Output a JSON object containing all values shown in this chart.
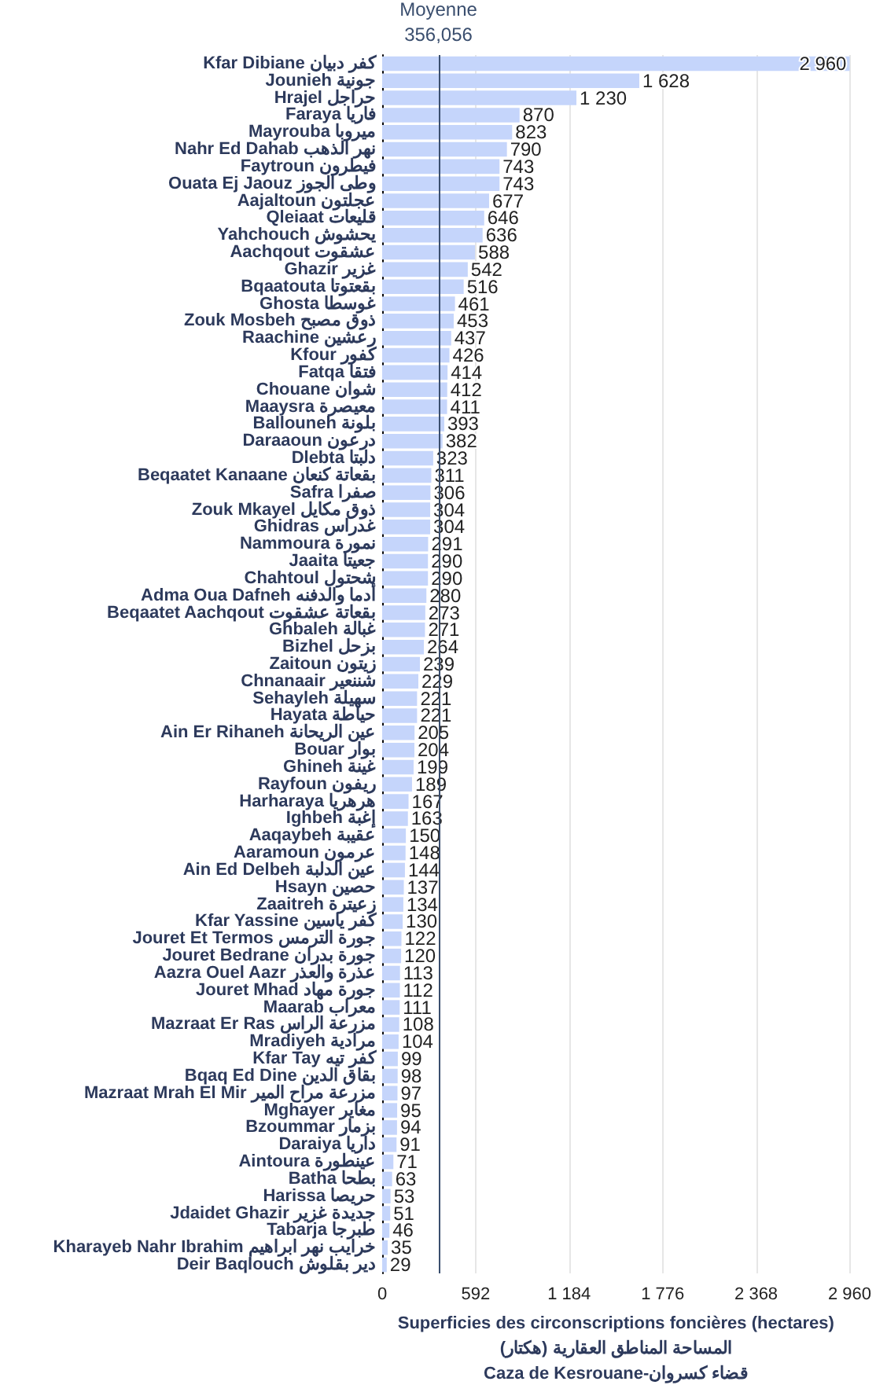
{
  "chart_data": {
    "type": "bar",
    "orientation": "horizontal",
    "color": "#c5d5fb",
    "categories": [
      "Kfar Dibiane كفر دبيان",
      "Jounieh جونية",
      "Hrajel حراجل",
      "Faraya فاريا",
      "Mayrouba ميروبا",
      "Nahr Ed Dahab نهر الذهب",
      "Faytroun فيطرون",
      "Ouata Ej Jaouz وطى الجوز",
      "Aajaltoun عجلتون",
      "Qleiaat قليعات",
      "Yahchouch يحشوش",
      "Aachqout عشقوت",
      "Ghazir غزير",
      "Bqaatouta بقعتوتا",
      "Ghosta غوسطا",
      "Zouk Mosbeh ذوق مصبح",
      "Raachine رعشين",
      "Kfour كفور",
      "Fatqa فتقا",
      "Chouane شوان",
      "Maaysra معيصرة",
      "Ballouneh بلونة",
      "Daraaoun درعون",
      "Dlebta دلبتا",
      "Beqaatet Kanaane بقعاتة كنعان",
      "Safra صفرا",
      "Zouk Mkayel ذوق مكايل",
      "Ghidras غدراس",
      "Nammoura نمورة",
      "Jaaita جعيتا",
      "Chahtoul شحتول",
      "Adma Oua Dafneh أدما والدفنه",
      "Beqaatet Aachqout بقعاتة عشقوت",
      "Ghbaleh غبالة",
      "Bizhel بزحل",
      "Zaitoun زيتون",
      "Chnanaair شننعير",
      "Sehayleh سهيلة",
      "Hayata حياطة",
      "Ain Er Rihaneh عين الريحانة",
      "Bouar بوار",
      "Ghineh غينة",
      "Rayfoun ريفون",
      "Harharaya هرهريا",
      "Ighbeh إغبة",
      "Aaqaybeh عقيبة",
      "Aaramoun عرمون",
      "Ain Ed Delbeh عين الدلبة",
      "Hsayn حصين",
      "Zaaitreh زعيترة",
      "Kfar Yassine كفر ياسين",
      "Jouret Et Termos جورة الترمس",
      "Jouret Bedrane جورة بدران",
      "Aazra Ouel Aazr عذرة والعذر",
      "Jouret Mhad جورة مهاد",
      "Maarab معراب",
      "Mazraat Er Ras مزرعة الراس",
      "Mradiyeh مرادية",
      "Kfar Tay كفر تيه",
      "Bqaq Ed Dine بقاق الدين",
      "Mazraat Mrah El Mir مزرعة مراح المير",
      "Mghayer مغاير",
      "Bzoummar بزمار",
      "Daraiya داريا",
      "Aintoura عينطورة",
      "Batha بطحا",
      "Harissa حريصا",
      "Jdaidet Ghazir جديدة غزير",
      "Tabarja طبرجا",
      "Kharayeb Nahr Ibrahim خرايب نهر ابراهيم",
      "Deir Baqlouch دير بقلوش"
    ],
    "values": [
      2960,
      1628,
      1230,
      870,
      823,
      790,
      743,
      743,
      677,
      646,
      636,
      588,
      542,
      516,
      461,
      453,
      437,
      426,
      414,
      412,
      411,
      393,
      382,
      323,
      311,
      306,
      304,
      304,
      291,
      290,
      290,
      280,
      273,
      271,
      264,
      239,
      229,
      221,
      221,
      205,
      204,
      199,
      189,
      167,
      163,
      150,
      148,
      144,
      137,
      134,
      130,
      122,
      120,
      113,
      112,
      111,
      108,
      104,
      99,
      98,
      97,
      95,
      94,
      91,
      71,
      63,
      53,
      51,
      46,
      35,
      29
    ],
    "value_labels": [
      "2 960",
      "1 628",
      "1 230",
      "870",
      "823",
      "790",
      "743",
      "743",
      "677",
      "646",
      "636",
      "588",
      "542",
      "516",
      "461",
      "453",
      "437",
      "426",
      "414",
      "412",
      "411",
      "393",
      "382",
      "323",
      "311",
      "306",
      "304",
      "304",
      "291",
      "290",
      "290",
      "280",
      "273",
      "271",
      "264",
      "239",
      "229",
      "221",
      "221",
      "205",
      "204",
      "199",
      "189",
      "167",
      "163",
      "150",
      "148",
      "144",
      "137",
      "134",
      "130",
      "122",
      "120",
      "113",
      "112",
      "111",
      "108",
      "104",
      "99",
      "98",
      "97",
      "95",
      "94",
      "91",
      "71",
      "63",
      "53",
      "51",
      "46",
      "35",
      "29"
    ],
    "xlim": [
      0,
      2960
    ],
    "xticks": [
      0,
      592,
      {
        "value": 1184,
        "label": "1 184"
      },
      {
        "value": 1776,
        "label": "1 776"
      },
      {
        "value": 2368,
        "label": "2 368"
      },
      {
        "value": 2960,
        "label": "2 960"
      }
    ],
    "grid": "x",
    "xlabel": "Superficies des circonscriptions foncières (hectares)\nالمساحة المناطق العقارية (هكتار)\nCaza de Kesrouane-قضاء كسروان",
    "ref_lines": [
      {
        "axis": "x",
        "value": 356.056,
        "label": "Moyenne\n356,056",
        "color": "#3a4e6e"
      }
    ]
  }
}
